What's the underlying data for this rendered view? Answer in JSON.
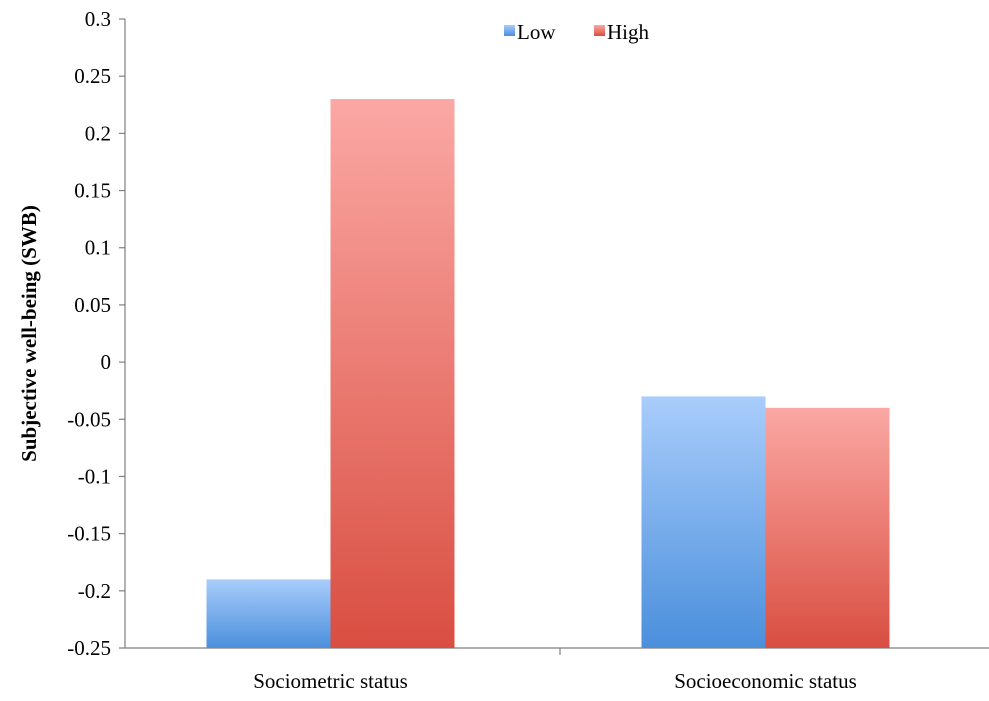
{
  "chart_data": {
    "type": "bar",
    "categories": [
      "Sociometric status",
      "Socioeconomic status"
    ],
    "series": [
      {
        "name": "Low",
        "values": [
          -0.19,
          -0.03
        ],
        "color_top": "#a9cdfb",
        "color_bottom": "#4b8fdc"
      },
      {
        "name": "High",
        "values": [
          0.23,
          -0.04
        ],
        "color_top": "#fba8a4",
        "color_bottom": "#d94e41"
      }
    ],
    "title": "",
    "xlabel": "",
    "ylabel": "Subjective well-being  (SWB)",
    "ylim": [
      -0.25,
      0.3
    ],
    "yticks": [
      0.3,
      0.25,
      0.2,
      0.15,
      0.1,
      0.05,
      0,
      -0.05,
      -0.1,
      -0.15,
      -0.2,
      -0.25
    ],
    "ytick_labels": [
      "0.3",
      "0.25",
      "0.2",
      "0.15",
      "0.1",
      "0.05",
      "0",
      "-0.05",
      "-0.1",
      "-0.15",
      "-0.2",
      "-0.25"
    ],
    "grid": false,
    "legend_position": "top-center"
  }
}
